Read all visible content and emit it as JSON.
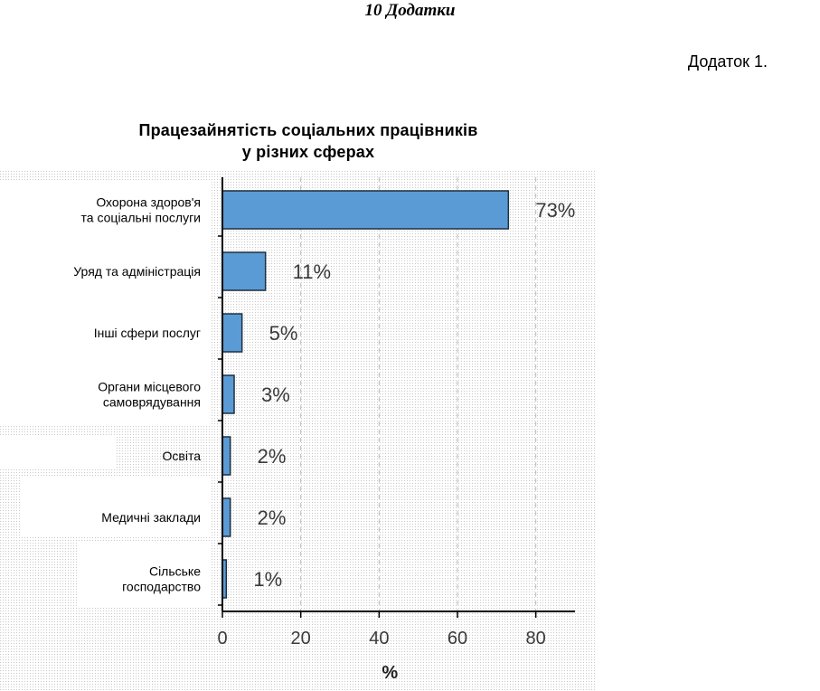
{
  "header": {
    "title": "10 Додатки"
  },
  "appendix": {
    "label": "Додаток 1."
  },
  "chart_data": {
    "type": "bar",
    "orientation": "horizontal",
    "title": [
      "Працезайнятість соціальних працівників",
      "у різних сферах"
    ],
    "categories": [
      [
        "Охорона здоров'я",
        "та соціальні послуги"
      ],
      [
        "Уряд та адміністрація"
      ],
      [
        "Інші сфери послуг"
      ],
      [
        "Органи місцевого",
        "самоврядування"
      ],
      [
        "Освіта"
      ],
      [
        "Медичні заклади"
      ],
      [
        "Сільське",
        "господарство"
      ]
    ],
    "values": [
      73,
      11,
      5,
      3,
      2,
      2,
      1
    ],
    "value_labels": [
      "73%",
      "11%",
      "5%",
      "3%",
      "2%",
      "2%",
      "1%"
    ],
    "xlabel": "%",
    "xlim": [
      0,
      90
    ],
    "xticks": [
      0,
      20,
      40,
      60,
      80
    ],
    "grid": true,
    "colors": {
      "bar": "#5b9bd5",
      "bar_border": "#1f2f3f",
      "grid": "#bbbbbb"
    }
  }
}
